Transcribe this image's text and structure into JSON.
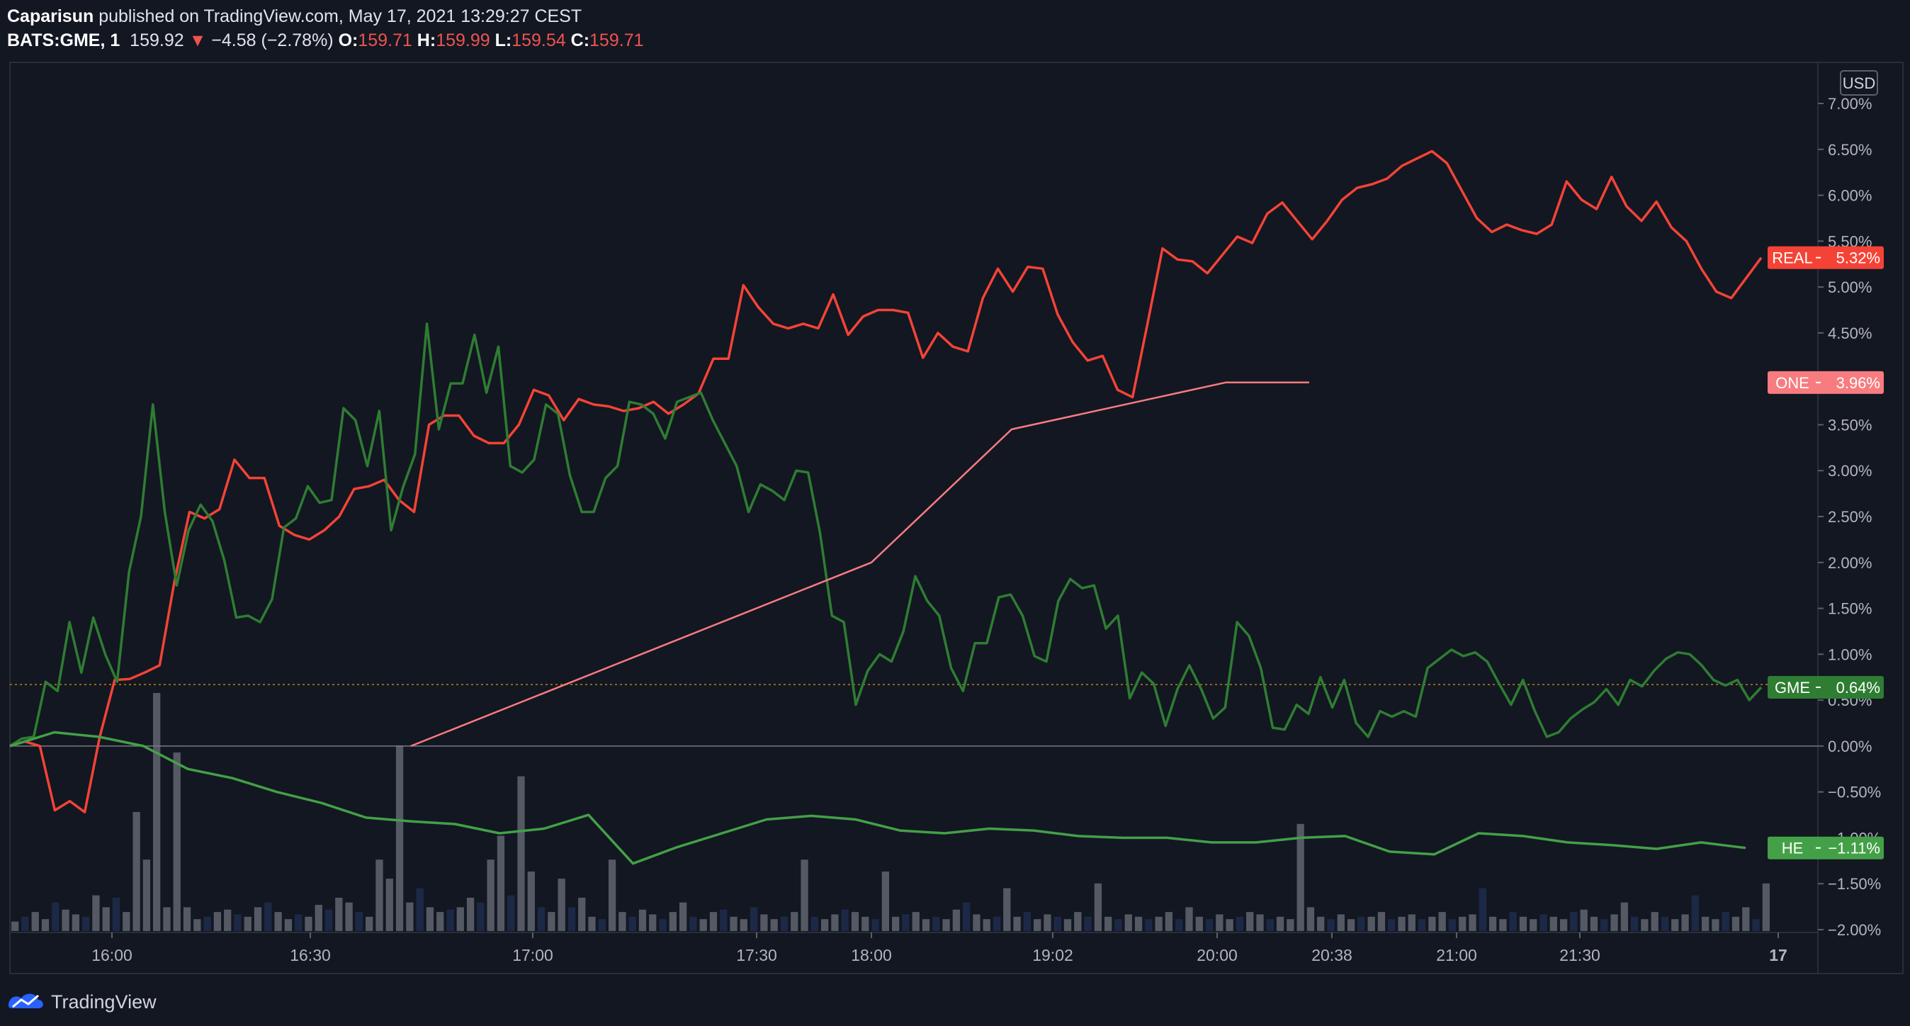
{
  "header": {
    "author": "Caparisun",
    "published_text": "published on TradingView.com, May 17, 2021 13:29:27 CEST",
    "symbol": "BATS:GME, 1",
    "last": "159.92",
    "change": "−4.58 (−2.78%)",
    "o_label": "O:",
    "o_value": "159.71",
    "h_label": "H:",
    "h_value": "159.99",
    "l_label": "L:",
    "l_value": "159.54",
    "c_label": "C:",
    "c_value": "159.71"
  },
  "footer": {
    "brand": "TradingView",
    "logo_icon": "tradingview-logo-icon"
  },
  "colors": {
    "background": "#131722",
    "gme": "#2e7d32",
    "real": "#f44336",
    "one": "#f77c80",
    "he": "#43a047",
    "volume_up": "#5d606b",
    "volume_down": "#1e2b4a"
  },
  "chart_data": {
    "type": "line",
    "currency_label": "USD",
    "y_unit": "%",
    "ylim": [
      -2.0,
      7.0
    ],
    "y_ticks": [
      "7.00%",
      "6.50%",
      "6.00%",
      "5.50%",
      "5.00%",
      "4.50%",
      "4.00%",
      "3.50%",
      "3.00%",
      "2.50%",
      "2.00%",
      "1.50%",
      "1.00%",
      "0.50%",
      "0.00%",
      "−0.50%",
      "−1.00%",
      "−1.50%",
      "−2.00%"
    ],
    "x_ticks": [
      "16:00",
      "16:30",
      "17:00",
      "17:30",
      "18:00",
      "19:02",
      "20:00",
      "20:38",
      "21:00",
      "21:30",
      "17"
    ],
    "current_price_line": 0.67,
    "series": [
      {
        "name": "REAL",
        "color_key": "real",
        "last_label": "5.32%",
        "values": [
          0.0,
          0.05,
          0.0,
          -0.7,
          -0.6,
          -0.72,
          0.1,
          0.72,
          0.73,
          0.8,
          0.88,
          1.8,
          2.55,
          2.48,
          2.58,
          3.12,
          2.92,
          2.92,
          2.4,
          2.3,
          2.25,
          2.35,
          2.5,
          2.8,
          2.83,
          2.9,
          2.68,
          2.55,
          3.5,
          3.6,
          3.6,
          3.38,
          3.3,
          3.3,
          3.5,
          3.88,
          3.82,
          3.55,
          3.78,
          3.72,
          3.7,
          3.65,
          3.68,
          3.75,
          3.62,
          3.72,
          3.84,
          4.22,
          4.22,
          5.02,
          4.78,
          4.6,
          4.55,
          4.6,
          4.55,
          4.92,
          4.48,
          4.68,
          4.75,
          4.75,
          4.72,
          4.23,
          4.5,
          4.35,
          4.3,
          4.88,
          5.2,
          4.95,
          5.22,
          5.2,
          4.7,
          4.4,
          4.2,
          4.25,
          3.88,
          3.8,
          4.6,
          5.42,
          5.3,
          5.28,
          5.15,
          5.35,
          5.55,
          5.48,
          5.8,
          5.92,
          5.72,
          5.52,
          5.72,
          5.95,
          6.08,
          6.12,
          6.18,
          6.32,
          6.4,
          6.48,
          6.35,
          6.05,
          5.75,
          5.6,
          5.68,
          5.62,
          5.58,
          5.68,
          6.15,
          5.95,
          5.85,
          6.2,
          5.88,
          5.72,
          5.93,
          5.65,
          5.5,
          5.2,
          4.95,
          4.88,
          5.1,
          5.32
        ]
      },
      {
        "name": "GME",
        "color_key": "gme",
        "last_label": "0.64%",
        "values": [
          0.0,
          0.08,
          0.1,
          0.7,
          0.6,
          1.35,
          0.8,
          1.4,
          1.0,
          0.7,
          1.9,
          2.5,
          3.72,
          2.55,
          1.75,
          2.35,
          2.63,
          2.45,
          2.02,
          1.4,
          1.42,
          1.35,
          1.6,
          2.38,
          2.48,
          2.83,
          2.65,
          2.68,
          3.68,
          3.55,
          3.05,
          3.65,
          2.35,
          2.82,
          3.18,
          4.6,
          3.45,
          3.95,
          3.95,
          4.48,
          3.85,
          4.35,
          3.05,
          2.98,
          3.12,
          3.72,
          3.62,
          2.95,
          2.55,
          2.55,
          2.92,
          3.05,
          3.75,
          3.72,
          3.62,
          3.35,
          3.75,
          3.8,
          3.85,
          3.55,
          3.3,
          3.05,
          2.55,
          2.85,
          2.78,
          2.68,
          3.0,
          2.98,
          2.32,
          1.42,
          1.35,
          0.45,
          0.82,
          1.0,
          0.92,
          1.25,
          1.85,
          1.58,
          1.42,
          0.85,
          0.6,
          1.12,
          1.12,
          1.62,
          1.65,
          1.42,
          0.98,
          0.92,
          1.58,
          1.82,
          1.72,
          1.75,
          1.28,
          1.42,
          0.52,
          0.8,
          0.68,
          0.22,
          0.62,
          0.88,
          0.62,
          0.3,
          0.42,
          1.35,
          1.2,
          0.85,
          0.2,
          0.18,
          0.45,
          0.35,
          0.75,
          0.42,
          0.72,
          0.25,
          0.1,
          0.38,
          0.32,
          0.38,
          0.32,
          0.85,
          0.95,
          1.05,
          0.98,
          1.02,
          0.92,
          0.68,
          0.45,
          0.72,
          0.38,
          0.1,
          0.15,
          0.3,
          0.4,
          0.48,
          0.62,
          0.45,
          0.72,
          0.65,
          0.82,
          0.95,
          1.02,
          1.0,
          0.88,
          0.72,
          0.66,
          0.72,
          0.5,
          0.64
        ]
      },
      {
        "name": "ONE",
        "color_key": "one",
        "last_label": "3.96%",
        "points": [
          [
            0.0,
            0.0
          ],
          [
            0.35,
            2.0
          ],
          [
            0.45,
            3.45
          ],
          [
            0.61,
            3.96
          ],
          [
            0.66,
            3.96
          ]
        ]
      },
      {
        "name": "HE",
        "color_key": "he",
        "last_label": "−1.11%",
        "values": [
          0.0,
          0.15,
          0.1,
          0.0,
          -0.25,
          -0.35,
          -0.5,
          -0.62,
          -0.78,
          -0.82,
          -0.85,
          -0.95,
          -0.9,
          -0.75,
          -1.28,
          -1.1,
          -0.95,
          -0.8,
          -0.76,
          -0.8,
          -0.92,
          -0.95,
          -0.9,
          -0.92,
          -0.98,
          -1.0,
          -1.0,
          -1.05,
          -1.05,
          -1.0,
          -0.98,
          -1.15,
          -1.18,
          -0.95,
          -0.98,
          -1.05,
          -1.08,
          -1.12,
          -1.05,
          -1.11
        ]
      }
    ],
    "volume": {
      "values": [
        0.04,
        0.06,
        0.08,
        0.05,
        0.12,
        0.09,
        0.07,
        0.06,
        0.15,
        0.1,
        0.14,
        0.08,
        0.5,
        0.3,
        1.0,
        0.1,
        0.75,
        0.1,
        0.05,
        0.06,
        0.08,
        0.09,
        0.07,
        0.06,
        0.1,
        0.12,
        0.08,
        0.05,
        0.07,
        0.06,
        0.11,
        0.09,
        0.14,
        0.12,
        0.08,
        0.06,
        0.3,
        0.22,
        0.78,
        0.12,
        0.18,
        0.1,
        0.08,
        0.09,
        0.1,
        0.14,
        0.12,
        0.3,
        0.4,
        0.15,
        0.65,
        0.25,
        0.1,
        0.08,
        0.22,
        0.1,
        0.14,
        0.06,
        0.05,
        0.3,
        0.08,
        0.06,
        0.09,
        0.07,
        0.05,
        0.08,
        0.12,
        0.06,
        0.05,
        0.08,
        0.09,
        0.06,
        0.05,
        0.1,
        0.07,
        0.05,
        0.06,
        0.08,
        0.3,
        0.06,
        0.05,
        0.07,
        0.09,
        0.08,
        0.06,
        0.05,
        0.25,
        0.06,
        0.07,
        0.08,
        0.05,
        0.06,
        0.05,
        0.09,
        0.12,
        0.07,
        0.05,
        0.06,
        0.18,
        0.06,
        0.08,
        0.05,
        0.07,
        0.06,
        0.05,
        0.08,
        0.06,
        0.2,
        0.06,
        0.05,
        0.07,
        0.06,
        0.05,
        0.06,
        0.08,
        0.05,
        0.1,
        0.06,
        0.05,
        0.07,
        0.05,
        0.06,
        0.08,
        0.07,
        0.05,
        0.06,
        0.05,
        0.45,
        0.1,
        0.06,
        0.05,
        0.07,
        0.05,
        0.06,
        0.06,
        0.08,
        0.05,
        0.06,
        0.07,
        0.05,
        0.06,
        0.08,
        0.05,
        0.06,
        0.07,
        0.18,
        0.06,
        0.05,
        0.08,
        0.06,
        0.05,
        0.07,
        0.06,
        0.05,
        0.08,
        0.09,
        0.06,
        0.05,
        0.07,
        0.12,
        0.06,
        0.05,
        0.08,
        0.06,
        0.05,
        0.07,
        0.15,
        0.06,
        0.05,
        0.08,
        0.06,
        0.1,
        0.05,
        0.2
      ]
    }
  }
}
